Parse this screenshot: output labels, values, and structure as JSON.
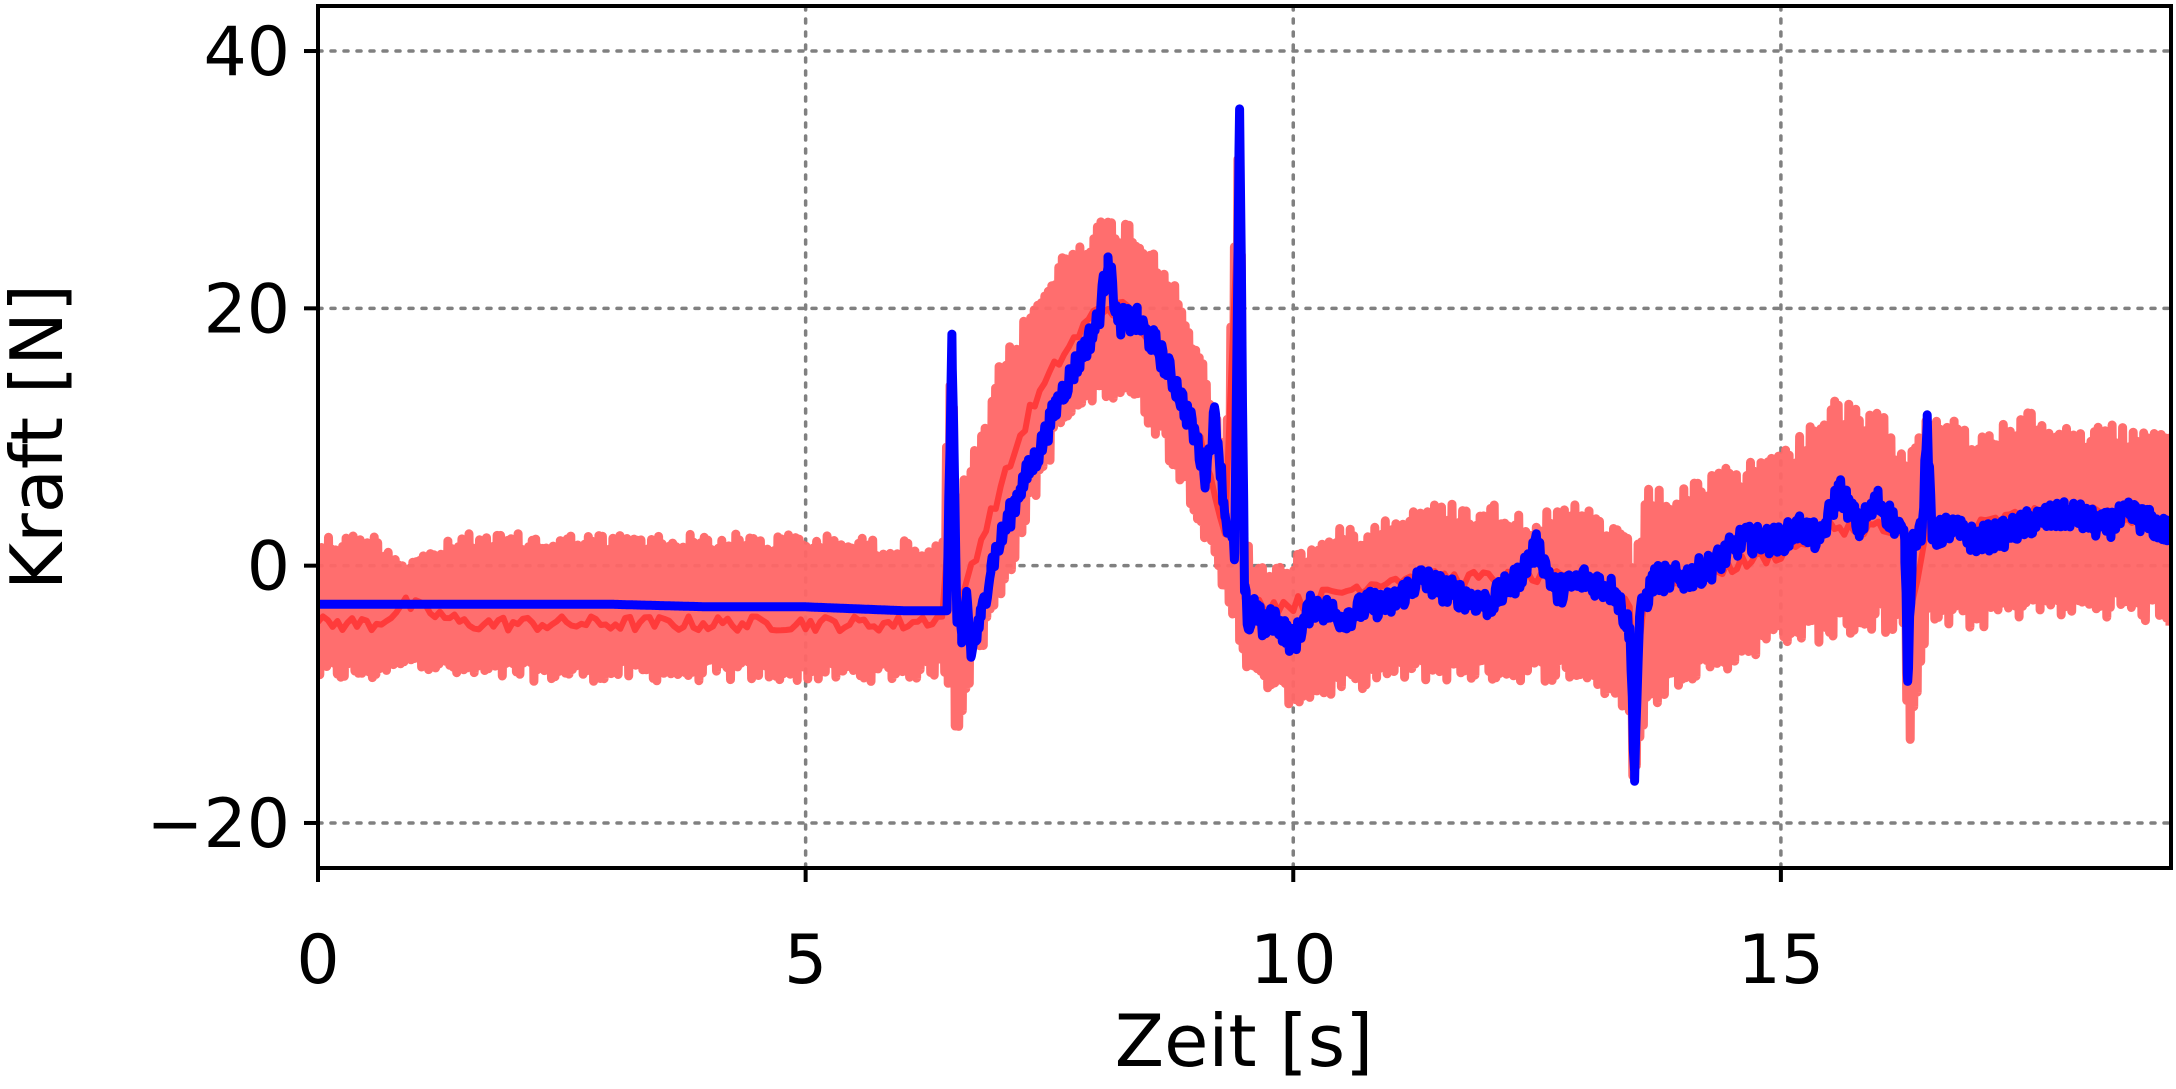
{
  "chart_data": {
    "type": "line",
    "xlabel": "Zeit [s]",
    "ylabel": "Kraft [N]",
    "xlim": [
      0,
      19
    ],
    "ylim": [
      -23.5,
      43.5
    ],
    "x_ticks": [
      0,
      5,
      10,
      15
    ],
    "x_tick_labels": [
      "0",
      "5",
      "10",
      "15"
    ],
    "y_ticks": [
      -20,
      0,
      20,
      40
    ],
    "y_tick_labels": [
      "−20",
      "0",
      "20",
      "40"
    ],
    "grid": true,
    "legend": "none",
    "series": [
      {
        "color": "#ff6666",
        "style": "noisy band",
        "x": [
          0,
          0.6,
          0.9,
          1.5,
          2.0,
          2.5,
          3.0,
          4.0,
          5.0,
          6.0,
          6.4,
          6.5,
          6.55,
          6.65,
          6.8,
          7.0,
          7.3,
          7.6,
          8.0,
          8.3,
          8.6,
          9.0,
          9.3,
          9.45,
          9.5,
          9.6,
          9.8,
          10.0,
          10.5,
          11.0,
          11.5,
          12.0,
          12.5,
          13.0,
          13.45,
          13.5,
          13.6,
          14.0,
          14.5,
          15.0,
          15.5,
          16.0,
          16.25,
          16.3,
          16.5,
          17.0,
          17.5,
          18.0,
          18.5,
          19.0
        ],
        "upper": [
          2.5,
          2.5,
          0.5,
          2.5,
          2.5,
          2.5,
          2.5,
          2.5,
          2.5,
          2.0,
          1.5,
          20.0,
          4.0,
          8.0,
          10.0,
          16.0,
          20.0,
          24.0,
          27.0,
          27.0,
          25.0,
          18.0,
          9.0,
          38.5,
          3.0,
          0.0,
          0.0,
          1.0,
          3.0,
          4.0,
          5.0,
          5.0,
          4.0,
          5.0,
          2.0,
          0.0,
          6.0,
          6.0,
          8.0,
          9.0,
          13.0,
          12.0,
          10.0,
          10.0,
          13.0,
          10.0,
          12.0,
          11.0,
          11.0,
          10.0
        ],
        "lower": [
          -9.0,
          -9.0,
          -7.5,
          -9.0,
          -9.0,
          -9.0,
          -9.0,
          -9.0,
          -9.0,
          -9.0,
          -8.5,
          -10.0,
          -14.0,
          -10.0,
          -7.0,
          -3.0,
          4.0,
          10.0,
          13.0,
          13.0,
          10.0,
          4.0,
          -3.0,
          -6.0,
          -8.0,
          -9.0,
          -10.0,
          -11.0,
          -10.0,
          -9.0,
          -9.0,
          -9.0,
          -9.0,
          -9.0,
          -12.0,
          -19.0,
          -12.0,
          -9.0,
          -8.0,
          -6.0,
          -6.0,
          -5.0,
          -6.0,
          -15.0,
          -5.0,
          -5.0,
          -4.0,
          -4.0,
          -4.0,
          -5.0
        ],
        "center_line": [
          -4.5,
          -4.5,
          -3.0,
          -4.5,
          -4.5,
          -4.5,
          -4.5,
          -4.5,
          -4.5,
          -4.5,
          -4.0,
          6.0,
          -5.0,
          -1.0,
          2.0,
          6.0,
          12.0,
          16.0,
          20.0,
          20.0,
          17.0,
          11.0,
          3.0,
          30.0,
          -3.0,
          -3.0,
          -3.0,
          -3.0,
          -2.0,
          -1.0,
          -1.0,
          -1.0,
          -1.0,
          -1.0,
          -3.0,
          -10.0,
          -2.0,
          -1.0,
          0.0,
          1.0,
          3.0,
          3.0,
          2.0,
          -5.0,
          3.0,
          3.0,
          4.0,
          4.0,
          4.0,
          3.0
        ]
      },
      {
        "color": "#0000ff",
        "style": "line",
        "x": [
          0,
          1.0,
          2.0,
          3.0,
          4.0,
          5.0,
          6.0,
          6.45,
          6.5,
          6.55,
          6.6,
          6.65,
          6.7,
          6.8,
          6.9,
          7.0,
          7.2,
          7.4,
          7.6,
          7.8,
          8.0,
          8.1,
          8.2,
          8.4,
          8.6,
          8.8,
          9.0,
          9.1,
          9.2,
          9.3,
          9.4,
          9.45,
          9.5,
          9.55,
          9.6,
          9.7,
          9.8,
          10.0,
          10.2,
          10.5,
          10.8,
          11.0,
          11.3,
          11.6,
          12.0,
          12.3,
          12.5,
          12.7,
          13.0,
          13.3,
          13.45,
          13.5,
          13.55,
          13.7,
          14.0,
          14.3,
          14.6,
          15.0,
          15.2,
          15.4,
          15.6,
          15.8,
          16.0,
          16.2,
          16.27,
          16.3,
          16.35,
          16.45,
          16.5,
          16.55,
          16.7,
          17.0,
          17.3,
          17.6,
          18.0,
          18.3,
          18.6,
          19.0
        ],
        "y": [
          -3.0,
          -3.0,
          -3.0,
          -3.0,
          -3.2,
          -3.2,
          -3.5,
          -3.5,
          18.0,
          -4.0,
          -6.0,
          -2.0,
          -7.0,
          -4.0,
          0.0,
          2.0,
          6.0,
          9.0,
          13.0,
          16.0,
          19.0,
          24.0,
          19.0,
          19.0,
          17.0,
          14.0,
          10.0,
          7.0,
          12.0,
          4.0,
          1.0,
          35.5,
          -2.0,
          -5.0,
          -3.0,
          -5.0,
          -4.0,
          -6.0,
          -3.0,
          -4.0,
          -3.0,
          -3.0,
          -1.0,
          -2.0,
          -3.0,
          -1.0,
          1.5,
          -2.0,
          -1.0,
          -2.0,
          -5.0,
          -16.0,
          -4.0,
          -1.0,
          -1.0,
          0.0,
          2.0,
          2.0,
          3.0,
          2.0,
          6.0,
          3.0,
          5.0,
          3.0,
          2.0,
          -9.0,
          2.0,
          3.0,
          11.0,
          2.0,
          3.0,
          2.0,
          2.5,
          3.5,
          4.0,
          3.0,
          4.0,
          2.5
        ]
      }
    ]
  }
}
